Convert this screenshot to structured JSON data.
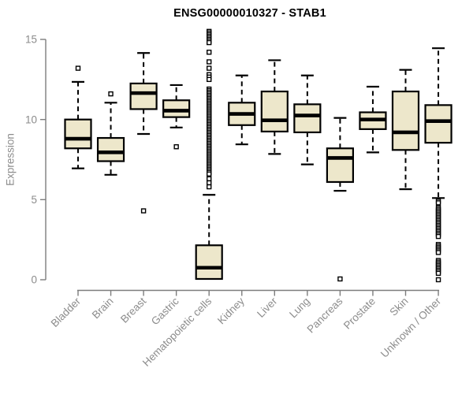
{
  "chart_data": {
    "type": "boxplot",
    "title": "ENSG00000010327 - STAB1",
    "ylabel": "Expression",
    "xlabel": "",
    "ylim": [
      0,
      15
    ],
    "yticks": [
      0,
      5,
      10,
      15
    ],
    "grid": false,
    "legend": false,
    "colors": {
      "box_fill": "#ede7cb",
      "box_border": "#000000",
      "median": "#000000",
      "whisker": "#000000",
      "outlier_fill": "#ffffff",
      "axis": "#7d7d7d",
      "label": "#8c8c8c",
      "title": "#000000",
      "background": "#ffffff"
    },
    "categories": [
      "Bladder",
      "Brain",
      "Breast",
      "Gastric",
      "Hematopoietic cells",
      "Kidney",
      "Liver",
      "Lung",
      "Pancreas",
      "Prostate",
      "Skin",
      "Unknown / Other"
    ],
    "series": [
      {
        "category": "Bladder",
        "whisker_low": 6.95,
        "q1": 8.2,
        "median": 8.8,
        "q3": 10.0,
        "whisker_high": 12.35,
        "outliers": [
          13.2
        ]
      },
      {
        "category": "Brain",
        "whisker_low": 6.55,
        "q1": 7.4,
        "median": 7.95,
        "q3": 8.85,
        "whisker_high": 11.05,
        "outliers": [
          11.6
        ]
      },
      {
        "category": "Breast",
        "whisker_low": 9.1,
        "q1": 10.65,
        "median": 11.65,
        "q3": 12.25,
        "whisker_high": 14.15,
        "outliers": [
          4.3
        ]
      },
      {
        "category": "Gastric",
        "whisker_low": 9.5,
        "q1": 10.15,
        "median": 10.55,
        "q3": 11.2,
        "whisker_high": 12.15,
        "outliers": [
          8.3
        ]
      },
      {
        "category": "Hematopoietic cells",
        "whisker_low": 0.05,
        "q1": 0.05,
        "median": 0.75,
        "q3": 2.15,
        "whisker_high": 5.3,
        "outliers": [
          15.5,
          15.4,
          15.3,
          15.2,
          15.1,
          15.0,
          14.9,
          14.8,
          14.2,
          13.6,
          13.2,
          12.8,
          12.65,
          12.5,
          11.9,
          11.8,
          11.7,
          11.6,
          11.5,
          11.4,
          11.3,
          11.2,
          11.1,
          11.0,
          10.9,
          10.8,
          10.7,
          10.6,
          10.5,
          10.4,
          10.3,
          10.2,
          10.1,
          10.0,
          9.9,
          9.8,
          9.7,
          9.6,
          9.5,
          9.4,
          9.3,
          9.2,
          9.1,
          9.0,
          8.9,
          8.8,
          8.7,
          8.6,
          8.5,
          8.4,
          8.3,
          8.2,
          8.1,
          8.0,
          7.9,
          7.8,
          7.7,
          7.6,
          7.5,
          7.4,
          7.3,
          7.2,
          7.1,
          7.0,
          6.9,
          6.8,
          6.7,
          6.6,
          6.3,
          6.05,
          5.8
        ]
      },
      {
        "category": "Kidney",
        "whisker_low": 8.45,
        "q1": 9.65,
        "median": 10.35,
        "q3": 11.05,
        "whisker_high": 12.75,
        "outliers": []
      },
      {
        "category": "Liver",
        "whisker_low": 7.85,
        "q1": 9.25,
        "median": 9.95,
        "q3": 11.75,
        "whisker_high": 13.7,
        "outliers": []
      },
      {
        "category": "Lung",
        "whisker_low": 7.2,
        "q1": 9.2,
        "median": 10.25,
        "q3": 10.95,
        "whisker_high": 12.75,
        "outliers": []
      },
      {
        "category": "Pancreas",
        "whisker_low": 5.55,
        "q1": 6.1,
        "median": 7.6,
        "q3": 8.2,
        "whisker_high": 10.1,
        "outliers": [
          0.05
        ]
      },
      {
        "category": "Prostate",
        "whisker_low": 7.95,
        "q1": 9.4,
        "median": 10.0,
        "q3": 10.45,
        "whisker_high": 12.05,
        "outliers": []
      },
      {
        "category": "Skin",
        "whisker_low": 5.65,
        "q1": 8.1,
        "median": 9.2,
        "q3": 11.75,
        "whisker_high": 13.1,
        "outliers": []
      },
      {
        "category": "Unknown / Other",
        "whisker_low": 5.1,
        "q1": 8.55,
        "median": 9.9,
        "q3": 10.9,
        "whisker_high": 14.45,
        "outliers": [
          4.9,
          4.8,
          4.5,
          4.4,
          4.3,
          4.2,
          4.1,
          4.0,
          3.9,
          3.8,
          3.7,
          3.6,
          3.5,
          3.4,
          3.3,
          3.2,
          3.1,
          3.0,
          2.9,
          2.8,
          2.7,
          2.2,
          2.1,
          2.0,
          1.9,
          1.8,
          1.7,
          1.2,
          1.1,
          1.0,
          0.9,
          0.8,
          0.7,
          0.6,
          0.5,
          0.4,
          0.0
        ]
      }
    ]
  }
}
